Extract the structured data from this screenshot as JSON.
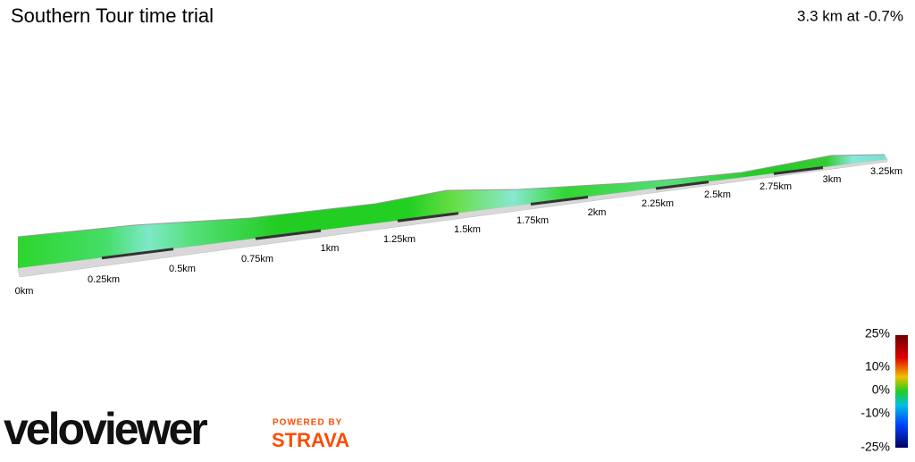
{
  "header": {
    "title": "Southern Tour time trial",
    "summary": "3.3 km at -0.7%"
  },
  "distance_labels": [
    "0km",
    "0.25km",
    "0.5km",
    "0.75km",
    "1km",
    "1.25km",
    "1.5km",
    "1.75km",
    "2km",
    "2.25km",
    "2.5km",
    "2.75km",
    "3km",
    "3.25km"
  ],
  "gradient_legend": [
    "25%",
    "10%",
    "0%",
    "-10%",
    "-25%"
  ],
  "branding": {
    "logo": "veloviewer",
    "powered_by": "POWERED BY",
    "partner": "STRAVA"
  }
}
